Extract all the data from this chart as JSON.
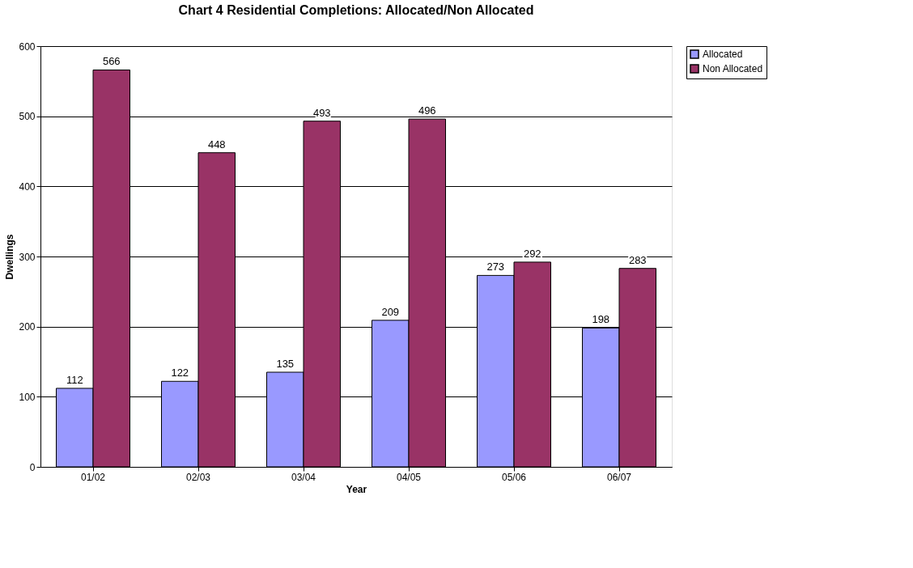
{
  "chart_data": {
    "type": "bar",
    "title": "Chart 4 Residential Completions: Allocated/Non Allocated",
    "xlabel": "Year",
    "ylabel": "Dwellings",
    "categories": [
      "01/02",
      "02/03",
      "03/04",
      "04/05",
      "05/06",
      "06/07"
    ],
    "series": [
      {
        "name": "Allocated",
        "color": "#9999ff",
        "values": [
          112,
          122,
          135,
          209,
          273,
          198
        ]
      },
      {
        "name": "Non Allocated",
        "color": "#993366",
        "values": [
          566,
          448,
          493,
          496,
          292,
          283
        ]
      }
    ],
    "ylim": [
      0,
      600
    ],
    "yticks": [
      0,
      100,
      200,
      300,
      400,
      500,
      600
    ],
    "grid": "y",
    "legend": "right",
    "data_labels": true
  }
}
